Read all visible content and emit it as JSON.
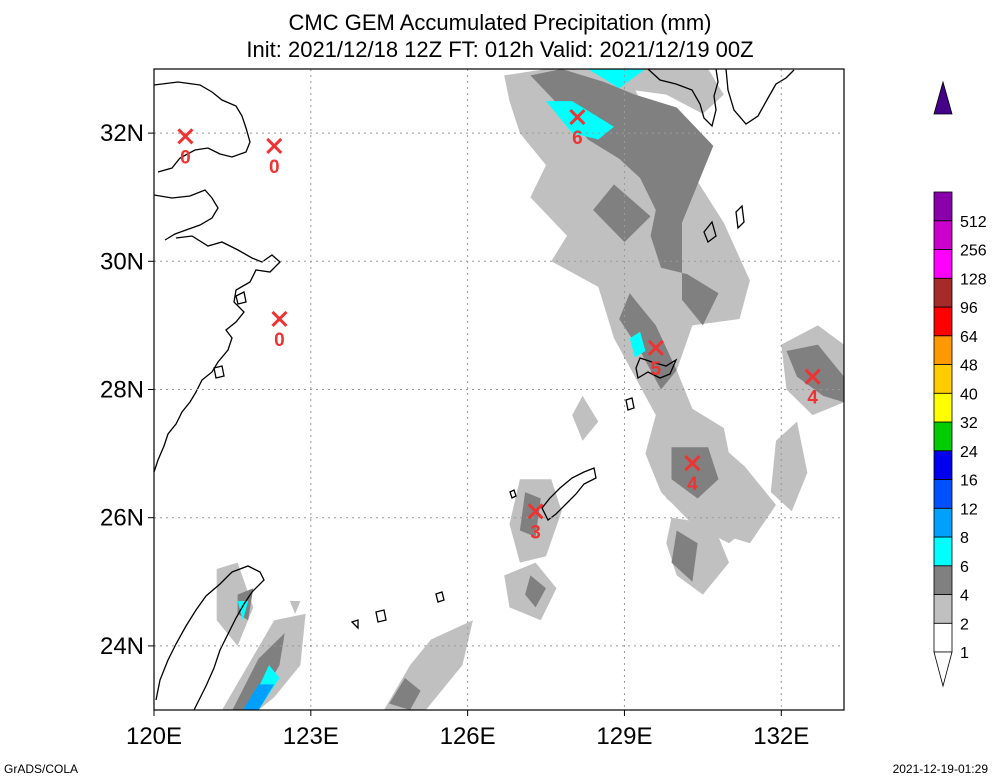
{
  "title": {
    "line1": "CMC GEM Accumulated Precipitation (mm)",
    "line2": "Init: 2021/12/18 12Z  FT: 012h  Valid: 2021/12/19 00Z"
  },
  "footer": {
    "left": "GrADS/COLA",
    "right": "2021-12-19-01:29"
  },
  "chart_data": {
    "type": "heatmap",
    "title": "CMC GEM Accumulated Precipitation (mm)",
    "subtitle": "Init: 2021/12/18 12Z  FT: 012h  Valid: 2021/12/19 00Z",
    "xlabel": "",
    "ylabel": "",
    "xlim": [
      120,
      133.2
    ],
    "ylim": [
      23,
      33
    ],
    "x_ticks": [
      120,
      123,
      126,
      129,
      132
    ],
    "x_tick_labels": [
      "120E",
      "123E",
      "126E",
      "129E",
      "132E"
    ],
    "y_ticks": [
      24,
      26,
      28,
      30,
      32
    ],
    "y_tick_labels": [
      "24N",
      "26N",
      "28N",
      "30N",
      "32N"
    ],
    "grid": true,
    "colorbar": {
      "levels": [
        "1",
        "2",
        "4",
        "6",
        "8",
        "12",
        "16",
        "24",
        "32",
        "40",
        "48",
        "64",
        "96",
        "128",
        "256",
        "512"
      ],
      "colors": [
        "#ffffff",
        "#c0c0c0",
        "#808080",
        "#00ffff",
        "#00a0ff",
        "#0050ff",
        "#0000ee",
        "#00cc00",
        "#ffff00",
        "#ffcc00",
        "#ff9900",
        "#ff0000",
        "#a52a2a",
        "#ff00ff",
        "#cc00cc",
        "#8800aa",
        "#440088"
      ]
    },
    "station_markers": [
      {
        "lon": 120.6,
        "lat": 31.95,
        "value": "0"
      },
      {
        "lon": 122.3,
        "lat": 31.8,
        "value": "0"
      },
      {
        "lon": 122.4,
        "lat": 29.1,
        "value": "0"
      },
      {
        "lon": 128.1,
        "lat": 32.25,
        "value": "6"
      },
      {
        "lon": 129.6,
        "lat": 28.65,
        "value": "5"
      },
      {
        "lon": 132.6,
        "lat": 28.2,
        "value": "4"
      },
      {
        "lon": 130.3,
        "lat": 26.85,
        "value": "4"
      },
      {
        "lon": 127.3,
        "lat": 26.1,
        "value": "3"
      }
    ],
    "precip_areas": [
      {
        "level": "1-2",
        "points": [
          [
            126.7,
            32.9
          ],
          [
            127.5,
            33.0
          ],
          [
            129.0,
            33.0
          ],
          [
            129.5,
            32.2
          ],
          [
            130.2,
            31.5
          ],
          [
            130.9,
            30.6
          ],
          [
            131.4,
            29.7
          ],
          [
            131.2,
            29.1
          ],
          [
            130.3,
            29.0
          ],
          [
            130.0,
            28.3
          ],
          [
            130.3,
            27.7
          ],
          [
            130.9,
            27.4
          ],
          [
            131.1,
            26.6
          ],
          [
            131.3,
            25.8
          ],
          [
            131.0,
            25.6
          ],
          [
            130.3,
            25.9
          ],
          [
            129.7,
            26.4
          ],
          [
            129.4,
            27.0
          ],
          [
            129.6,
            27.6
          ],
          [
            129.2,
            28.2
          ],
          [
            128.8,
            28.8
          ],
          [
            128.5,
            29.6
          ],
          [
            127.6,
            30.0
          ],
          [
            127.9,
            30.4
          ],
          [
            127.2,
            31.0
          ],
          [
            127.5,
            31.5
          ],
          [
            127.0,
            32.0
          ],
          [
            126.8,
            32.5
          ]
        ]
      },
      {
        "level": "1-2",
        "points": [
          [
            128.6,
            33.0
          ],
          [
            130.6,
            33.0
          ],
          [
            130.9,
            32.6
          ],
          [
            130.5,
            32.3
          ],
          [
            129.8,
            32.6
          ],
          [
            128.9,
            32.7
          ]
        ]
      },
      {
        "level": "1-2",
        "points": [
          [
            129.7,
            27.1
          ],
          [
            130.6,
            27.3
          ],
          [
            131.3,
            26.8
          ],
          [
            131.9,
            26.2
          ],
          [
            131.4,
            25.6
          ],
          [
            130.6,
            25.8
          ],
          [
            129.8,
            26.3
          ]
        ]
      },
      {
        "level": "1-2",
        "points": [
          [
            129.9,
            26.0
          ],
          [
            130.7,
            25.9
          ],
          [
            131.0,
            25.3
          ],
          [
            130.5,
            24.8
          ],
          [
            130.0,
            25.1
          ],
          [
            129.8,
            25.6
          ]
        ]
      },
      {
        "level": "1-2",
        "points": [
          [
            127.0,
            26.6
          ],
          [
            127.6,
            26.6
          ],
          [
            127.8,
            26.1
          ],
          [
            127.5,
            25.4
          ],
          [
            127.0,
            25.3
          ],
          [
            126.8,
            25.9
          ]
        ]
      },
      {
        "level": "1-2",
        "points": [
          [
            126.7,
            25.1
          ],
          [
            127.3,
            25.3
          ],
          [
            127.7,
            24.9
          ],
          [
            127.4,
            24.4
          ],
          [
            126.8,
            24.6
          ]
        ]
      },
      {
        "level": "1-2",
        "points": [
          [
            125.3,
            24.1
          ],
          [
            126.1,
            24.4
          ],
          [
            125.9,
            23.7
          ],
          [
            125.2,
            23.0
          ],
          [
            124.4,
            23.0
          ],
          [
            124.9,
            23.7
          ]
        ]
      },
      {
        "level": "1-2",
        "points": [
          [
            132.0,
            28.7
          ],
          [
            132.7,
            29.0
          ],
          [
            133.2,
            28.7
          ],
          [
            133.2,
            27.8
          ],
          [
            132.6,
            27.6
          ],
          [
            132.1,
            28.0
          ]
        ]
      },
      {
        "level": "1-2",
        "points": [
          [
            131.9,
            27.2
          ],
          [
            132.3,
            27.5
          ],
          [
            132.5,
            26.7
          ],
          [
            132.2,
            26.1
          ],
          [
            131.8,
            26.4
          ]
        ]
      },
      {
        "level": "1-2",
        "points": [
          [
            128.0,
            27.6
          ],
          [
            128.2,
            27.9
          ],
          [
            128.5,
            27.5
          ],
          [
            128.2,
            27.2
          ]
        ]
      },
      {
        "level": "1-2",
        "points": [
          [
            121.2,
            25.2
          ],
          [
            121.6,
            25.3
          ],
          [
            121.9,
            24.6
          ],
          [
            121.6,
            24.0
          ],
          [
            121.2,
            24.4
          ]
        ]
      },
      {
        "level": "1-2",
        "points": [
          [
            121.3,
            23.0
          ],
          [
            121.8,
            23.7
          ],
          [
            122.3,
            24.4
          ],
          [
            122.9,
            24.5
          ],
          [
            122.8,
            23.7
          ],
          [
            122.3,
            23.2
          ],
          [
            122.0,
            23.0
          ]
        ]
      },
      {
        "level": "1-2",
        "points": [
          [
            122.6,
            24.7
          ],
          [
            122.8,
            24.7
          ],
          [
            122.7,
            24.5
          ]
        ]
      },
      {
        "level": "2-4",
        "points": [
          [
            127.2,
            32.9
          ],
          [
            127.9,
            32.3
          ],
          [
            128.3,
            31.9
          ],
          [
            128.9,
            31.6
          ],
          [
            129.3,
            31.3
          ],
          [
            129.6,
            30.8
          ],
          [
            129.5,
            30.4
          ],
          [
            129.7,
            29.9
          ],
          [
            130.2,
            29.8
          ],
          [
            130.8,
            29.5
          ],
          [
            130.5,
            29.0
          ],
          [
            130.1,
            29.4
          ],
          [
            130.1,
            30.6
          ],
          [
            130.7,
            31.8
          ],
          [
            130.0,
            32.4
          ],
          [
            129.2,
            32.6
          ],
          [
            128.6,
            32.8
          ],
          [
            127.8,
            33.0
          ]
        ]
      },
      {
        "level": "2-4",
        "points": [
          [
            128.8,
            31.2
          ],
          [
            129.5,
            30.7
          ],
          [
            129.0,
            30.3
          ],
          [
            128.4,
            30.8
          ]
        ]
      },
      {
        "level": "2-4",
        "points": [
          [
            129.1,
            29.5
          ],
          [
            129.6,
            29.0
          ],
          [
            130.0,
            28.3
          ],
          [
            129.7,
            28.0
          ],
          [
            129.3,
            28.6
          ],
          [
            128.9,
            29.1
          ]
        ]
      },
      {
        "level": "2-4",
        "points": [
          [
            129.9,
            27.1
          ],
          [
            130.6,
            27.1
          ],
          [
            130.8,
            26.6
          ],
          [
            130.4,
            26.3
          ],
          [
            129.9,
            26.6
          ]
        ]
      },
      {
        "level": "2-4",
        "points": [
          [
            130.0,
            25.8
          ],
          [
            130.4,
            25.6
          ],
          [
            130.3,
            25.0
          ],
          [
            129.9,
            25.3
          ]
        ]
      },
      {
        "level": "2-4",
        "points": [
          [
            127.1,
            26.4
          ],
          [
            127.4,
            26.3
          ],
          [
            127.3,
            25.7
          ],
          [
            127.0,
            25.8
          ]
        ]
      },
      {
        "level": "2-4",
        "points": [
          [
            127.2,
            25.1
          ],
          [
            127.5,
            24.9
          ],
          [
            127.3,
            24.6
          ],
          [
            127.1,
            24.8
          ]
        ]
      },
      {
        "level": "2-4",
        "points": [
          [
            132.1,
            28.6
          ],
          [
            132.7,
            28.7
          ],
          [
            133.2,
            28.2
          ],
          [
            133.2,
            27.8
          ],
          [
            132.8,
            27.9
          ],
          [
            132.3,
            28.2
          ]
        ]
      },
      {
        "level": "2-4",
        "points": [
          [
            121.6,
            24.8
          ],
          [
            121.9,
            24.9
          ],
          [
            121.8,
            24.4
          ],
          [
            121.6,
            24.5
          ]
        ]
      },
      {
        "level": "2-4",
        "points": [
          [
            121.5,
            23.0
          ],
          [
            122.0,
            23.8
          ],
          [
            122.5,
            24.2
          ],
          [
            122.4,
            23.7
          ],
          [
            121.9,
            23.0
          ]
        ]
      },
      {
        "level": "2-4",
        "points": [
          [
            124.5,
            23.1
          ],
          [
            124.8,
            23.5
          ],
          [
            125.1,
            23.3
          ],
          [
            124.9,
            23.0
          ]
        ]
      },
      {
        "level": "4-6",
        "points": [
          [
            127.5,
            32.5
          ],
          [
            128.0,
            32.5
          ],
          [
            128.8,
            32.1
          ],
          [
            128.5,
            31.9
          ],
          [
            128.0,
            32.0
          ]
        ]
      },
      {
        "level": "4-6",
        "points": [
          [
            128.3,
            33.0
          ],
          [
            128.9,
            32.7
          ],
          [
            129.4,
            33.0
          ]
        ]
      },
      {
        "level": "4-6",
        "points": [
          [
            129.1,
            28.8
          ],
          [
            129.3,
            28.9
          ],
          [
            129.4,
            28.6
          ],
          [
            129.2,
            28.5
          ]
        ]
      },
      {
        "level": "4-6",
        "points": [
          [
            121.6,
            24.7
          ],
          [
            121.8,
            24.7
          ],
          [
            121.7,
            24.4
          ]
        ]
      },
      {
        "level": "4-6",
        "points": [
          [
            121.8,
            23.0
          ],
          [
            122.2,
            23.7
          ],
          [
            122.4,
            23.5
          ],
          [
            122.0,
            23.0
          ]
        ]
      },
      {
        "level": "6-8",
        "points": [
          [
            121.7,
            23.0
          ],
          [
            122.0,
            23.4
          ],
          [
            122.3,
            23.4
          ],
          [
            122.0,
            23.0
          ]
        ]
      }
    ]
  }
}
